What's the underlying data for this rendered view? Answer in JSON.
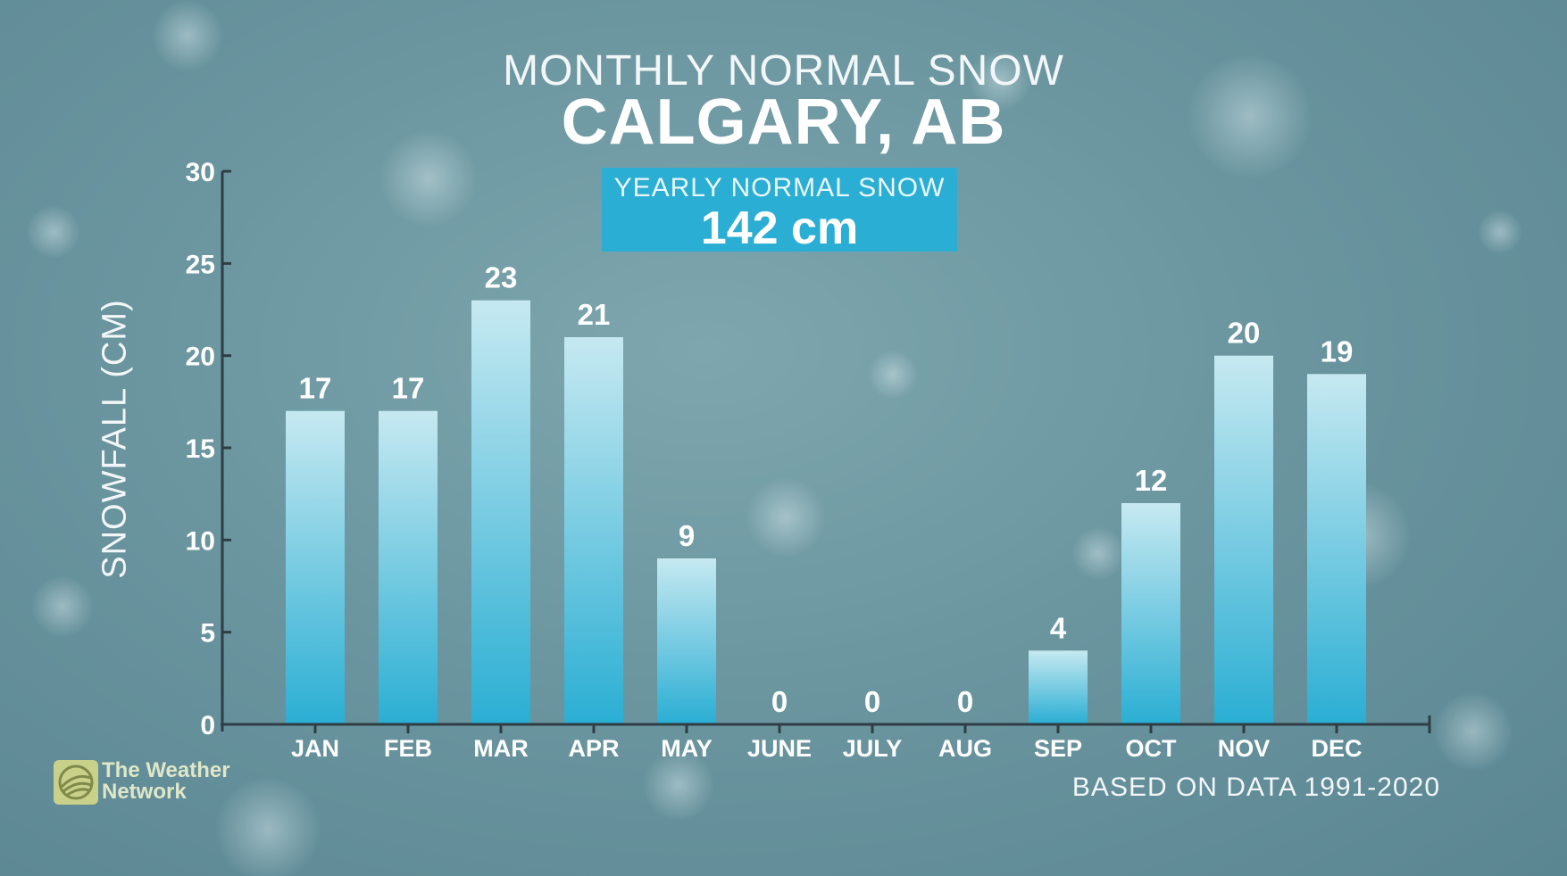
{
  "supertitle": "MONTHLY NORMAL SNOW",
  "title": "CALGARY, AB",
  "yearly": {
    "label": "YEARLY NORMAL SNOW",
    "value": "142 cm"
  },
  "footnote": "BASED ON DATA 1991-2020",
  "brand": {
    "line1": "The Weather",
    "line2": "Network"
  },
  "colors": {
    "background": "#6b96a0",
    "bar_top": "#c6e9f1",
    "bar_bottom": "#2aaed3",
    "yearly_box": "#2aaed3",
    "axis": "#2f3d44",
    "logo": "#c9d08a"
  },
  "chart_data": {
    "type": "bar",
    "ylabel": "SNOWFALL (CM)",
    "xlabel": "",
    "ylim": [
      0,
      30
    ],
    "yticks": [
      0,
      5,
      10,
      15,
      20,
      25,
      30
    ],
    "grid": false,
    "categories": [
      "JAN",
      "FEB",
      "MAR",
      "APR",
      "MAY",
      "JUNE",
      "JULY",
      "AUG",
      "SEP",
      "OCT",
      "NOV",
      "DEC"
    ],
    "values": [
      17,
      17,
      23,
      21,
      9,
      0,
      0,
      0,
      4,
      12,
      20,
      19
    ]
  }
}
